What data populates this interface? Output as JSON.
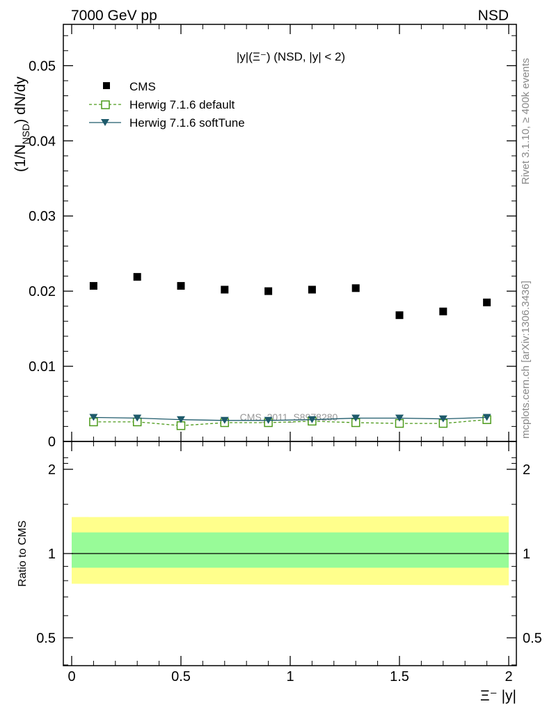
{
  "header": {
    "left": "7000 GeV pp",
    "right": "NSD"
  },
  "side_labels": {
    "rivet": "Rivet 3.1.10, ≥ 400k events",
    "mcplots": "mcplots.cern.ch [arXiv:1306.3436]"
  },
  "chart_data": [
    {
      "type": "scatter",
      "title": "|y|(Ξ⁻) (NSD, |y| < 2)",
      "ylabel": "(1/N_NSD) dN/dy",
      "xlim": [
        -0.05,
        2.05
      ],
      "ylim": [
        0,
        0.0555
      ],
      "yticks": [
        0,
        0.01,
        0.02,
        0.03,
        0.04,
        0.05
      ],
      "ytick_labels": [
        "0",
        "0.01",
        "0.02",
        "0.03",
        "0.04",
        "0.05"
      ],
      "watermark": "CMS_2011_S8978280",
      "legend_position": "top-left",
      "x": [
        0.1,
        0.3,
        0.5,
        0.7,
        0.9,
        1.1,
        1.3,
        1.5,
        1.7,
        1.9
      ],
      "series": [
        {
          "name": "CMS",
          "marker": "filled-square",
          "color": "#000000",
          "values": [
            0.0207,
            0.0219,
            0.0207,
            0.0202,
            0.02,
            0.0202,
            0.0204,
            0.0168,
            0.0173,
            0.0185
          ]
        },
        {
          "name": "Herwig 7.1.6 default",
          "marker": "open-square",
          "line": "dashed",
          "color": "#4c9a1a",
          "values": [
            0.0026,
            0.0026,
            0.0021,
            0.0025,
            0.0025,
            0.0027,
            0.0025,
            0.0024,
            0.0024,
            0.0029
          ]
        },
        {
          "name": "Herwig 7.1.6 softTune",
          "marker": "down-triangle",
          "line": "solid",
          "color": "#1e5a6b",
          "values": [
            0.0032,
            0.0031,
            0.0029,
            0.0028,
            0.0028,
            0.0029,
            0.0031,
            0.0031,
            0.003,
            0.0032
          ]
        }
      ]
    },
    {
      "type": "area",
      "ylabel": "Ratio to CMS",
      "xlabel": "Ξ⁻ |y|",
      "xlim": [
        -0.05,
        2.05
      ],
      "ylim": [
        0.3,
        2.3
      ],
      "yticks": [
        0.5,
        1,
        2
      ],
      "ytick_labels": [
        "0.5",
        "1",
        "2"
      ],
      "xticks": [
        0,
        0.5,
        1,
        1.5,
        2
      ],
      "xtick_labels": [
        "0",
        "0.5",
        "1",
        "1.5",
        "2"
      ],
      "reference_line": 1,
      "bands": [
        {
          "color": "#ffff8c",
          "x": [
            0,
            2
          ],
          "lower": [
            0.78,
            0.77
          ],
          "upper": [
            1.35,
            1.36
          ]
        },
        {
          "color": "#98fb98",
          "x": [
            0,
            2
          ],
          "lower": [
            0.89,
            0.89
          ],
          "upper": [
            1.19,
            1.19
          ]
        }
      ]
    }
  ]
}
